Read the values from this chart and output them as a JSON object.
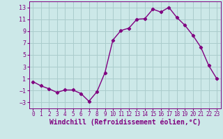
{
  "x": [
    0,
    1,
    2,
    3,
    4,
    5,
    6,
    7,
    8,
    9,
    10,
    11,
    12,
    13,
    14,
    15,
    16,
    17,
    18,
    19,
    20,
    21,
    22,
    23
  ],
  "y": [
    0.5,
    -0.2,
    -0.7,
    -1.3,
    -0.9,
    -0.9,
    -1.5,
    -2.8,
    -1.2,
    2.0,
    7.5,
    9.1,
    9.5,
    11.0,
    11.1,
    12.7,
    12.2,
    13.0,
    11.3,
    10.0,
    8.3,
    6.3,
    3.2,
    1.0
  ],
  "line_color": "#800080",
  "marker": "D",
  "marker_size": 2.2,
  "linewidth": 1.0,
  "bg_color": "#cce8e8",
  "grid_color": "#aacccc",
  "xlabel": "Windchill (Refroidissement éolien,°C)",
  "ylabel": "",
  "xlim": [
    -0.5,
    23.5
  ],
  "ylim": [
    -4,
    14
  ],
  "yticks": [
    -3,
    -1,
    1,
    3,
    5,
    7,
    9,
    11,
    13
  ],
  "xticks": [
    0,
    1,
    2,
    3,
    4,
    5,
    6,
    7,
    8,
    9,
    10,
    11,
    12,
    13,
    14,
    15,
    16,
    17,
    18,
    19,
    20,
    21,
    22,
    23
  ],
  "xlabel_color": "#800080",
  "tick_color": "#800080",
  "xlabel_fontsize": 7.0,
  "tick_fontsize": 6.0,
  "xtick_fontsize": 5.5
}
